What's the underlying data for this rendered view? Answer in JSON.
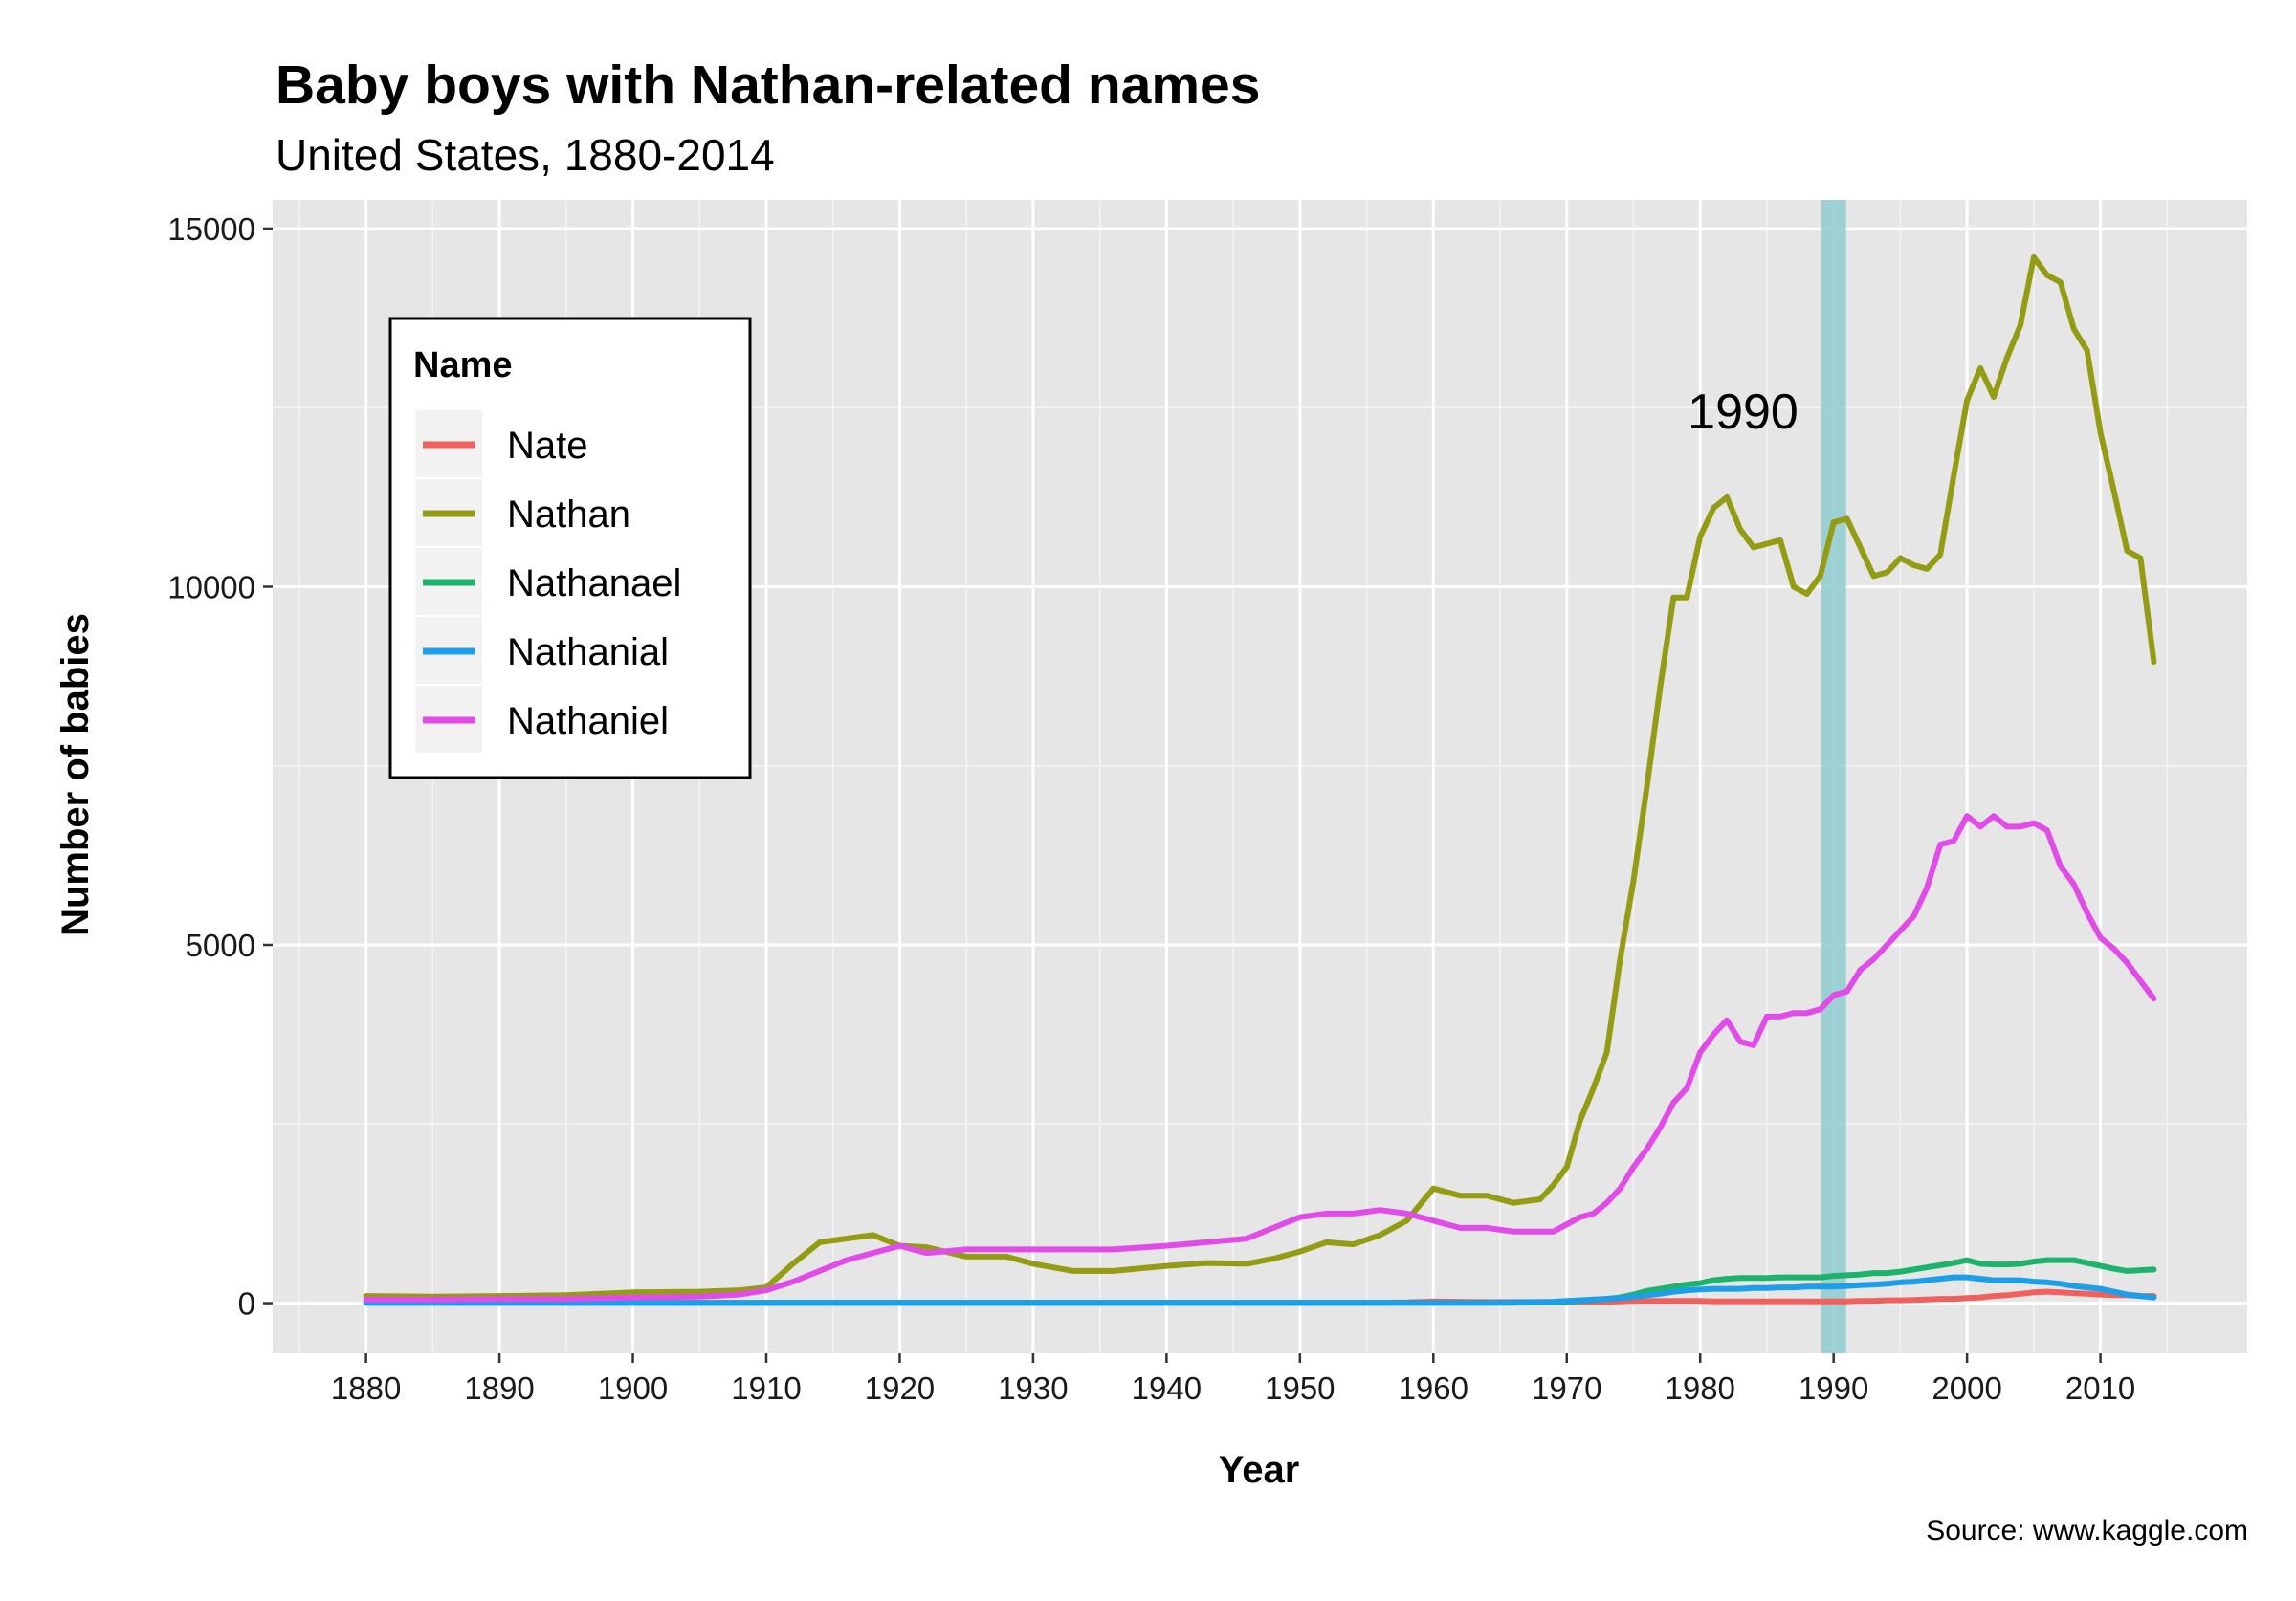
{
  "chart_data": {
    "type": "line",
    "title": "Baby boys with Nathan-related names",
    "subtitle": "United States, 1880-2014",
    "xlabel": "Year",
    "ylabel": "Number of babies",
    "caption": "Source: www.kaggle.com",
    "xlim": [
      1873,
      2021
    ],
    "ylim": [
      -700,
      15400
    ],
    "x_ticks": [
      1880,
      1890,
      1900,
      1910,
      1920,
      1930,
      1940,
      1950,
      1960,
      1970,
      1980,
      1990,
      2000,
      2010
    ],
    "y_ticks": [
      0,
      5000,
      10000,
      15000
    ],
    "grid": true,
    "legend": {
      "title": "Name",
      "position": "top-left"
    },
    "highlight": {
      "x": 1990,
      "label": "1990",
      "color": "#8ecbcf"
    },
    "x": [
      1880,
      1885,
      1890,
      1895,
      1900,
      1905,
      1908,
      1910,
      1912,
      1914,
      1916,
      1918,
      1920,
      1922,
      1925,
      1928,
      1930,
      1933,
      1936,
      1940,
      1943,
      1946,
      1948,
      1950,
      1952,
      1954,
      1956,
      1958,
      1960,
      1962,
      1964,
      1966,
      1968,
      1969,
      1970,
      1971,
      1972,
      1973,
      1974,
      1975,
      1976,
      1977,
      1978,
      1979,
      1980,
      1981,
      1982,
      1983,
      1984,
      1985,
      1986,
      1987,
      1988,
      1989,
      1990,
      1991,
      1992,
      1993,
      1994,
      1995,
      1996,
      1997,
      1998,
      1999,
      2000,
      2001,
      2002,
      2003,
      2004,
      2005,
      2006,
      2007,
      2008,
      2009,
      2010,
      2011,
      2012,
      2013,
      2014
    ],
    "series": [
      {
        "name": "Nate",
        "color": "#f0605d",
        "values": [
          5,
          5,
          5,
          5,
          5,
          5,
          5,
          5,
          5,
          5,
          5,
          5,
          5,
          5,
          5,
          5,
          5,
          5,
          5,
          5,
          5,
          5,
          5,
          5,
          5,
          5,
          5,
          10,
          25,
          20,
          15,
          15,
          15,
          15,
          15,
          15,
          15,
          20,
          25,
          30,
          30,
          30,
          30,
          30,
          30,
          25,
          25,
          25,
          25,
          25,
          25,
          25,
          25,
          25,
          25,
          25,
          30,
          30,
          40,
          40,
          45,
          50,
          60,
          60,
          70,
          80,
          100,
          110,
          130,
          150,
          160,
          150,
          140,
          130,
          120,
          110,
          110,
          100,
          100
        ]
      },
      {
        "name": "Nathan",
        "color": "#949c14",
        "values": [
          100,
          90,
          100,
          110,
          150,
          160,
          180,
          220,
          550,
          850,
          900,
          950,
          800,
          780,
          650,
          650,
          550,
          450,
          450,
          520,
          560,
          550,
          620,
          720,
          850,
          820,
          950,
          1150,
          1600,
          1500,
          1500,
          1400,
          1450,
          1650,
          1900,
          2550,
          3000,
          3500,
          4800,
          5900,
          7200,
          8600,
          9850,
          9850,
          10700,
          11100,
          11250,
          10800,
          10550,
          10600,
          10650,
          10000,
          9900,
          10150,
          10900,
          10950,
          10550,
          10150,
          10200,
          10400,
          10300,
          10250,
          10450,
          11550,
          12600,
          13050,
          12650,
          13200,
          13650,
          14600,
          14350,
          14250,
          13600,
          13300,
          12150,
          11350,
          10500,
          10400,
          8950
        ]
      },
      {
        "name": "Nathanael",
        "color": "#1cb46c",
        "values": [
          5,
          5,
          5,
          5,
          5,
          5,
          5,
          5,
          5,
          5,
          5,
          5,
          5,
          5,
          5,
          5,
          5,
          5,
          5,
          5,
          5,
          5,
          5,
          5,
          5,
          5,
          5,
          5,
          5,
          5,
          5,
          5,
          10,
          15,
          20,
          30,
          45,
          60,
          80,
          120,
          170,
          200,
          230,
          260,
          280,
          320,
          340,
          350,
          350,
          350,
          360,
          360,
          360,
          360,
          380,
          390,
          400,
          420,
          420,
          440,
          470,
          500,
          530,
          560,
          600,
          550,
          540,
          540,
          550,
          580,
          600,
          600,
          600,
          560,
          520,
          480,
          450,
          460,
          470
        ]
      },
      {
        "name": "Nathanial",
        "color": "#1d9ee8",
        "values": [
          5,
          5,
          5,
          5,
          5,
          5,
          5,
          5,
          5,
          5,
          5,
          5,
          5,
          5,
          5,
          5,
          5,
          5,
          5,
          5,
          5,
          5,
          5,
          5,
          5,
          5,
          5,
          5,
          5,
          5,
          5,
          10,
          15,
          20,
          30,
          40,
          50,
          60,
          70,
          90,
          110,
          130,
          160,
          180,
          190,
          200,
          200,
          200,
          210,
          210,
          220,
          220,
          230,
          230,
          230,
          240,
          250,
          260,
          270,
          290,
          300,
          320,
          340,
          360,
          360,
          340,
          320,
          320,
          320,
          300,
          290,
          270,
          240,
          220,
          200,
          160,
          120,
          100,
          80
        ]
      },
      {
        "name": "Nathaniel",
        "color": "#e14be8",
        "values": [
          50,
          50,
          60,
          60,
          80,
          90,
          120,
          180,
          300,
          450,
          600,
          700,
          800,
          700,
          750,
          750,
          750,
          750,
          750,
          800,
          850,
          900,
          1050,
          1200,
          1250,
          1250,
          1300,
          1250,
          1150,
          1050,
          1050,
          1000,
          1000,
          1000,
          1100,
          1200,
          1250,
          1400,
          1600,
          1900,
          2150,
          2450,
          2800,
          3000,
          3500,
          3750,
          3950,
          3650,
          3600,
          4000,
          4000,
          4050,
          4050,
          4100,
          4300,
          4350,
          4650,
          4800,
          5000,
          5200,
          5400,
          5800,
          6400,
          6450,
          6800,
          6650,
          6800,
          6650,
          6650,
          6700,
          6600,
          6100,
          5850,
          5450,
          5100,
          4950,
          4750,
          4500,
          4250
        ]
      }
    ]
  }
}
